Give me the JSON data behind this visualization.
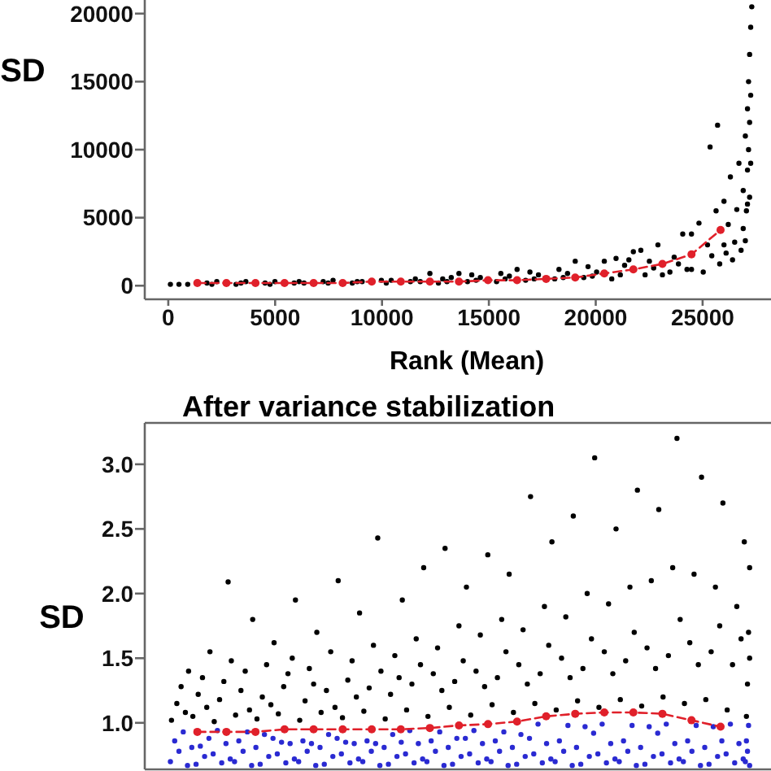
{
  "chart_data": [
    {
      "type": "scatter",
      "xlabel": "Rank (Mean)",
      "ylabel": "SD",
      "xlim": [
        -1100,
        28200
      ],
      "ylim": [
        -1000,
        21000
      ],
      "xticks": [
        0,
        5000,
        10000,
        15000,
        20000,
        25000
      ],
      "yticks": [
        0,
        5000,
        10000,
        15000,
        20000
      ],
      "marker": "circle",
      "line_style": "dashed",
      "series": [
        {
          "color": "#000000",
          "x": [
            100,
            500,
            910,
            1810,
            2040,
            2270,
            3170,
            3400,
            3630,
            4530,
            4760,
            4990,
            5890,
            6120,
            6350,
            7250,
            7480,
            7710,
            8610,
            8840,
            9070,
            9970,
            10200,
            10430,
            11330,
            11560,
            11790,
            12640,
            12840,
            13040,
            13240,
            14000,
            14200,
            14400,
            14600,
            15360,
            15560,
            15760,
            15960,
            16720,
            16920,
            17120,
            17320,
            18080,
            18280,
            18480,
            18680,
            19440,
            19640,
            19840,
            20040,
            12240,
            13600,
            16320,
            19040,
            20750,
            20950,
            21150,
            21350,
            21550,
            22110,
            22310,
            22510,
            22710,
            22910,
            23470,
            23670,
            23870,
            24070,
            24270,
            24830,
            25030,
            25230,
            25430,
            25630,
            20400,
            21760,
            23120,
            24480,
            24480,
            25350,
            25700,
            25800,
            26000,
            26000,
            26100,
            26200,
            26300,
            26400,
            26500,
            26600,
            26700,
            26800,
            26900,
            26900,
            27000,
            27000,
            27050,
            27100,
            27100,
            27150,
            27150,
            27200,
            27200,
            27200,
            27250,
            27250,
            27300,
            27250,
            27100
          ],
          "values": [
            100,
            100,
            100,
            200,
            100,
            300,
            100,
            200,
            300,
            200,
            100,
            300,
            200,
            300,
            200,
            300,
            200,
            400,
            200,
            300,
            300,
            400,
            200,
            400,
            300,
            500,
            300,
            200,
            500,
            300,
            600,
            300,
            800,
            400,
            600,
            300,
            900,
            500,
            700,
            400,
            1000,
            500,
            800,
            500,
            1200,
            600,
            900,
            600,
            1400,
            700,
            1000,
            900,
            900,
            1200,
            1800,
            500,
            2000,
            800,
            1500,
            1900,
            2600,
            800,
            1800,
            1300,
            3000,
            1000,
            2100,
            1600,
            3800,
            1200,
            4600,
            1000,
            3000,
            2200,
            5500,
            1800,
            2500,
            800,
            1200,
            3800,
            10200,
            11800,
            1600,
            3000,
            6200,
            2400,
            4500,
            8000,
            1900,
            3200,
            5600,
            9000,
            2600,
            4200,
            7000,
            11000,
            3300,
            5500,
            8500,
            13000,
            10000,
            15000,
            6500,
            17000,
            12000,
            19000,
            14000,
            20500,
            9000,
            6000
          ]
        },
        {
          "type": "line",
          "color": "#e0202a",
          "x": [
            1360,
            2720,
            4080,
            5440,
            6800,
            8160,
            9520,
            10880,
            12240,
            13600,
            14960,
            16320,
            17680,
            19040,
            20400,
            21760,
            23120,
            24480,
            25840
          ],
          "values": [
            200,
            200,
            200,
            200,
            200,
            200,
            300,
            300,
            300,
            300,
            400,
            400,
            500,
            600,
            900,
            1200,
            1600,
            2300,
            4100
          ]
        }
      ]
    },
    {
      "type": "scatter",
      "title": "After variance stabilization",
      "ylabel": "SD",
      "xlim": [
        -1100,
        28200
      ],
      "ylim": [
        0.64,
        3.32
      ],
      "yticks": [
        {
          "value": 1,
          "label": "1.0"
        },
        1.5,
        {
          "value": 2,
          "label": "2.0"
        },
        2.5,
        {
          "value": 3,
          "label": "3.0"
        }
      ],
      "tick_labels": "y",
      "marker": "circle",
      "line_style": "dashed",
      "series": [
        {
          "color": "#000000",
          "x": [
            150,
            400,
            600,
            800,
            950,
            1150,
            1400,
            1600,
            1800,
            1950,
            2150,
            2400,
            2600,
            2800,
            2950,
            3150,
            3400,
            3600,
            3800,
            3950,
            4150,
            4400,
            4600,
            4800,
            4950,
            5150,
            5400,
            5600,
            5800,
            5950,
            6150,
            6400,
            6600,
            6800,
            6950,
            7150,
            7400,
            7600,
            7800,
            7950,
            8150,
            8400,
            8600,
            8800,
            8950,
            9150,
            9400,
            9600,
            9800,
            9950,
            10150,
            10400,
            10600,
            10800,
            10950,
            11150,
            11400,
            11600,
            11800,
            11950,
            12150,
            12400,
            12600,
            12800,
            12950,
            13150,
            13400,
            13600,
            13800,
            13950,
            14150,
            14400,
            14600,
            14800,
            14950,
            15150,
            15400,
            15600,
            15800,
            15950,
            16150,
            16400,
            16600,
            16800,
            16950,
            17150,
            17400,
            17600,
            17800,
            17950,
            18150,
            18400,
            18600,
            18800,
            18950,
            19150,
            19400,
            19600,
            19800,
            19950,
            20150,
            20400,
            20600,
            20800,
            20950,
            21150,
            21400,
            21600,
            21800,
            21950,
            22150,
            22400,
            22600,
            22800,
            22950,
            23150,
            23400,
            23600,
            23800,
            23950,
            24150,
            24400,
            24600,
            24800,
            24950,
            25150,
            25400,
            25600,
            25800,
            25950,
            26150,
            26400,
            26600,
            26800,
            26950,
            27050,
            27100,
            27150,
            27200,
            27200
          ],
          "values": [
            1.02,
            1.15,
            1.28,
            1.08,
            1.4,
            1.05,
            1.22,
            1.35,
            1.12,
            1.55,
            1.01,
            1.18,
            1.32,
            2.09,
            1.48,
            1.06,
            1.25,
            1.4,
            1.1,
            1.8,
            1.03,
            1.2,
            1.45,
            1.14,
            1.62,
            1.07,
            1.28,
            1.38,
            1.5,
            1.95,
            1.02,
            1.17,
            1.42,
            1.3,
            1.7,
            1.08,
            1.25,
            1.55,
            1.12,
            2.1,
            1.04,
            1.33,
            1.48,
            1.2,
            1.85,
            1.09,
            1.27,
            1.6,
            2.43,
            1.4,
            1.03,
            1.22,
            1.52,
            1.35,
            1.95,
            1.1,
            1.3,
            1.65,
            1.45,
            2.2,
            1.05,
            1.38,
            1.58,
            1.25,
            2.35,
            1.12,
            1.32,
            1.75,
            1.48,
            2.05,
            1.06,
            1.4,
            1.68,
            1.28,
            2.3,
            1.14,
            1.35,
            1.8,
            1.55,
            2.15,
            1.08,
            1.45,
            1.72,
            1.3,
            2.75,
            1.15,
            1.38,
            1.9,
            1.6,
            2.4,
            1.1,
            1.5,
            1.82,
            1.35,
            2.6,
            1.17,
            1.42,
            2.0,
            1.65,
            3.05,
            1.12,
            1.55,
            1.92,
            1.38,
            2.5,
            1.18,
            1.48,
            2.05,
            1.7,
            2.8,
            1.13,
            1.58,
            2.1,
            1.42,
            2.65,
            1.2,
            1.52,
            2.2,
            3.2,
            1.8,
            1.15,
            1.62,
            2.15,
            1.45,
            2.9,
            1.18,
            1.55,
            2.05,
            1.75,
            2.7,
            1.1,
            1.45,
            1.9,
            1.65,
            2.4,
            1.05,
            1.3,
            1.7,
            2.2,
            1.5
          ]
        },
        {
          "color": "#2a2ad2",
          "x": [
            100,
            300,
            500,
            700,
            900,
            1100,
            1300,
            1500,
            1700,
            1900,
            2100,
            2300,
            2500,
            2700,
            2900,
            3100,
            3300,
            3500,
            3700,
            3900,
            4100,
            4300,
            4500,
            4700,
            4900,
            5100,
            5300,
            5500,
            5700,
            5900,
            6100,
            6300,
            6500,
            6700,
            6900,
            7100,
            7300,
            7500,
            7700,
            7900,
            8100,
            8300,
            8500,
            8700,
            8900,
            9100,
            9300,
            9500,
            9700,
            9900,
            10100,
            10300,
            10500,
            10700,
            10900,
            11100,
            11300,
            11500,
            11700,
            11900,
            12100,
            12300,
            12500,
            12700,
            12900,
            13100,
            13300,
            13500,
            13700,
            13900,
            14100,
            14300,
            14500,
            14700,
            14900,
            15100,
            15300,
            15500,
            15700,
            15900,
            16100,
            16300,
            16500,
            16700,
            16900,
            17100,
            17300,
            17500,
            17700,
            17900,
            18100,
            18300,
            18500,
            18700,
            18900,
            19100,
            19300,
            19500,
            19700,
            19900,
            20100,
            20300,
            20500,
            20700,
            20900,
            21100,
            21300,
            21500,
            21700,
            21900,
            22100,
            22300,
            22500,
            22700,
            22900,
            23100,
            23300,
            23500,
            23700,
            23900,
            24100,
            24300,
            24500,
            24700,
            24900,
            25100,
            25300,
            25500,
            25700,
            25900,
            26100,
            26300,
            26500,
            26700,
            26900,
            27000,
            27050,
            27100,
            27150,
            27200
          ],
          "values": [
            0.7,
            0.86,
            0.78,
            0.93,
            0.67,
            0.81,
            0.68,
            0.82,
            0.74,
            0.88,
            0.76,
            0.94,
            0.69,
            0.84,
            0.72,
            0.7,
            0.86,
            0.78,
            0.93,
            0.67,
            0.81,
            0.68,
            0.91,
            0.74,
            0.88,
            0.76,
            0.85,
            0.69,
            0.84,
            0.72,
            0.7,
            0.86,
            0.78,
            0.84,
            0.67,
            0.81,
            0.68,
            0.91,
            0.74,
            0.88,
            0.76,
            0.85,
            0.69,
            0.84,
            0.72,
            0.7,
            0.86,
            0.78,
            0.84,
            0.67,
            0.81,
            0.68,
            0.91,
            0.74,
            0.85,
            0.76,
            0.94,
            0.69,
            0.84,
            0.72,
            0.7,
            0.86,
            0.78,
            0.93,
            0.67,
            0.81,
            0.68,
            0.88,
            0.74,
            0.88,
            0.76,
            0.94,
            0.69,
            0.84,
            0.72,
            0.7,
            0.86,
            0.78,
            0.93,
            0.67,
            0.81,
            0.68,
            0.91,
            0.74,
            0.88,
            0.76,
            0.99,
            0.69,
            0.84,
            0.72,
            0.7,
            0.86,
            0.78,
            0.98,
            0.67,
            0.81,
            0.68,
            0.97,
            0.74,
            0.92,
            0.76,
            0.99,
            0.69,
            0.84,
            0.72,
            0.7,
            0.86,
            0.78,
            0.98,
            0.67,
            0.81,
            0.68,
            0.97,
            0.74,
            0.92,
            0.76,
            0.99,
            0.69,
            0.84,
            0.72,
            0.7,
            0.86,
            0.78,
            0.98,
            0.67,
            0.81,
            0.68,
            0.97,
            0.74,
            0.86,
            0.76,
            0.99,
            0.69,
            0.84,
            0.72,
            0.7,
            0.86,
            0.78,
            0.98,
            0.67
          ]
        },
        {
          "type": "line",
          "color": "#e0202a",
          "x": [
            1360,
            2720,
            4080,
            5440,
            6800,
            8160,
            9520,
            10880,
            12240,
            13600,
            14960,
            16320,
            17680,
            19040,
            20400,
            21760,
            23120,
            24480,
            25840
          ],
          "values": [
            0.93,
            0.93,
            0.93,
            0.95,
            0.95,
            0.95,
            0.95,
            0.95,
            0.96,
            0.98,
            0.99,
            1.01,
            1.05,
            1.07,
            1.08,
            1.08,
            1.07,
            1.02,
            0.97
          ]
        }
      ]
    }
  ]
}
